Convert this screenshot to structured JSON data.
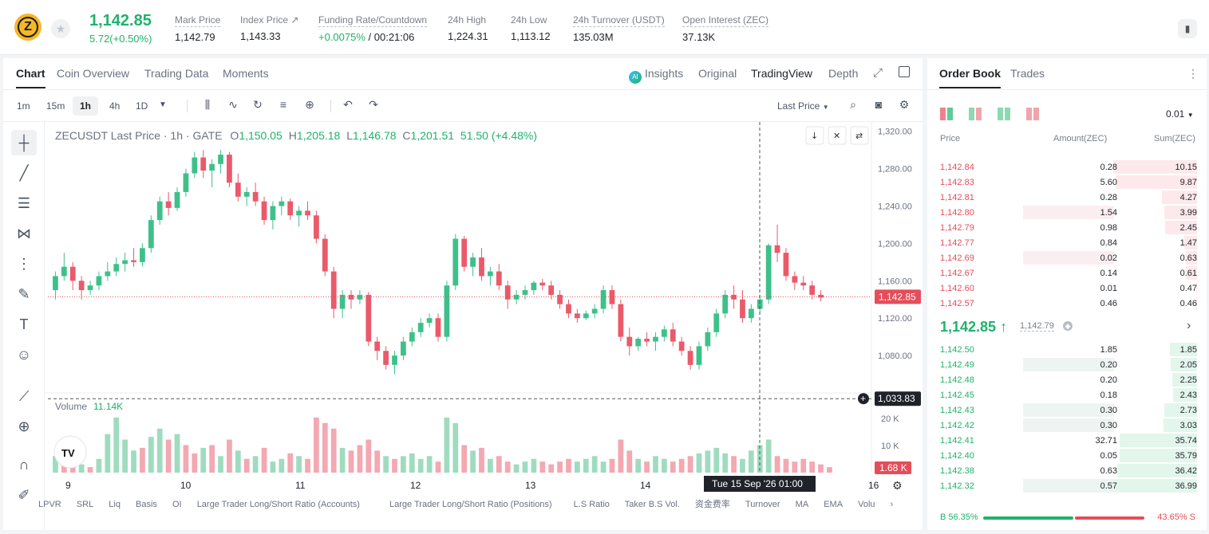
{
  "header": {
    "coin_icon": "zcash-logo",
    "price": "1,142.85",
    "change": "5.72(+0.50%)",
    "stats": [
      {
        "label": "Mark Price",
        "value": "1,142.79"
      },
      {
        "label": "Index Price ↗",
        "value": "1,143.33"
      },
      {
        "label": "Funding Rate/Countdown",
        "value_green": "+0.0075%",
        "value_rest": " / 00:21:06"
      },
      {
        "label": "24h High",
        "value": "1,224.31"
      },
      {
        "label": "24h Low",
        "value": "1,113.12"
      },
      {
        "label": "24h Turnover (USDT)",
        "value": "135.03M"
      },
      {
        "label": "Open Interest (ZEC)",
        "value": "37.13K"
      }
    ]
  },
  "chart_tabs": [
    "Chart",
    "Coin Overview",
    "Trading Data",
    "Moments"
  ],
  "view_tabs": {
    "insights": "Insights",
    "original": "Original",
    "tradingview": "TradingView",
    "depth": "Depth"
  },
  "timeframes": [
    "1m",
    "15m",
    "1h",
    "4h",
    "1D"
  ],
  "price_type": "Last Price",
  "legend": {
    "title": "ZECUSDT Last Price · 1h · GATE",
    "o": "1,150.05",
    "h": "1,205.18",
    "l": "1,146.78",
    "c": "1,201.51",
    "change": "51.50 (+4.48%)"
  },
  "volume_legend": {
    "label": "Volume",
    "value": "11.14K"
  },
  "bottom_indicators": [
    "LPVR",
    "SRL",
    "Liq",
    "Basis",
    "OI",
    "Large Trader Long/Short Ratio (Accounts)",
    "Large Trader Long/Short Ratio (Positions)",
    "L.S Ratio",
    "Taker B.S Vol.",
    "资金费率",
    "Turnover",
    "MA",
    "EMA",
    "Volu"
  ],
  "colors": {
    "up": "#20b26c",
    "down": "#e54d5a",
    "up_candle": "#3ec08b",
    "down_candle": "#ea5a6a"
  },
  "chart_data": {
    "type": "candlestick",
    "y_ticks": [
      "1,320.00",
      "1,280.00",
      "1,240.00",
      "1,200.00",
      "1,160.00",
      "1,120.00",
      "1,080.00"
    ],
    "ylim": [
      1040,
      1330
    ],
    "x_ticks": [
      "9",
      "10",
      "11",
      "12",
      "13",
      "14",
      "16"
    ],
    "volume_ticks": [
      "20 K",
      "10 K"
    ],
    "last_price_tag": "1,142.85",
    "crosshair_price_tag": "1,033.83",
    "crosshair_time": "Tue 15 Sep '26   01:00",
    "volume_tag": "1.68 K",
    "candles": [
      [
        1150,
        1170,
        1140,
        1165
      ],
      [
        1165,
        1190,
        1160,
        1175
      ],
      [
        1175,
        1180,
        1150,
        1160
      ],
      [
        1160,
        1165,
        1140,
        1150
      ],
      [
        1150,
        1160,
        1145,
        1155
      ],
      [
        1155,
        1170,
        1150,
        1165
      ],
      [
        1165,
        1180,
        1160,
        1170
      ],
      [
        1170,
        1185,
        1165,
        1178
      ],
      [
        1178,
        1190,
        1170,
        1182
      ],
      [
        1182,
        1195,
        1175,
        1180
      ],
      [
        1180,
        1200,
        1175,
        1195
      ],
      [
        1195,
        1230,
        1190,
        1225
      ],
      [
        1225,
        1250,
        1220,
        1245
      ],
      [
        1245,
        1255,
        1230,
        1238
      ],
      [
        1238,
        1260,
        1235,
        1255
      ],
      [
        1255,
        1280,
        1250,
        1275
      ],
      [
        1275,
        1298,
        1270,
        1292
      ],
      [
        1292,
        1300,
        1270,
        1278
      ],
      [
        1278,
        1290,
        1260,
        1285
      ],
      [
        1285,
        1300,
        1275,
        1295
      ],
      [
        1295,
        1298,
        1260,
        1265
      ],
      [
        1265,
        1275,
        1245,
        1250
      ],
      [
        1250,
        1260,
        1240,
        1255
      ],
      [
        1255,
        1265,
        1240,
        1245
      ],
      [
        1245,
        1250,
        1220,
        1225
      ],
      [
        1225,
        1245,
        1215,
        1240
      ],
      [
        1240,
        1250,
        1230,
        1245
      ],
      [
        1245,
        1248,
        1225,
        1230
      ],
      [
        1230,
        1240,
        1218,
        1235
      ],
      [
        1235,
        1245,
        1225,
        1230
      ],
      [
        1230,
        1235,
        1200,
        1205
      ],
      [
        1205,
        1210,
        1165,
        1170
      ],
      [
        1170,
        1175,
        1120,
        1130
      ],
      [
        1130,
        1150,
        1120,
        1145
      ],
      [
        1145,
        1150,
        1130,
        1140
      ],
      [
        1140,
        1150,
        1135,
        1145
      ],
      [
        1145,
        1148,
        1090,
        1095
      ],
      [
        1095,
        1100,
        1075,
        1085
      ],
      [
        1085,
        1090,
        1065,
        1070
      ],
      [
        1070,
        1085,
        1060,
        1080
      ],
      [
        1080,
        1100,
        1075,
        1095
      ],
      [
        1095,
        1110,
        1090,
        1105
      ],
      [
        1105,
        1120,
        1100,
        1115
      ],
      [
        1115,
        1125,
        1110,
        1120
      ],
      [
        1120,
        1125,
        1095,
        1100
      ],
      [
        1100,
        1160,
        1095,
        1155
      ],
      [
        1155,
        1210,
        1150,
        1205
      ],
      [
        1205,
        1208,
        1170,
        1175
      ],
      [
        1175,
        1190,
        1165,
        1185
      ],
      [
        1185,
        1195,
        1160,
        1165
      ],
      [
        1165,
        1175,
        1155,
        1170
      ],
      [
        1170,
        1178,
        1150,
        1155
      ],
      [
        1155,
        1160,
        1130,
        1140
      ],
      [
        1140,
        1150,
        1135,
        1145
      ],
      [
        1145,
        1155,
        1140,
        1150
      ],
      [
        1150,
        1160,
        1145,
        1158
      ],
      [
        1158,
        1162,
        1150,
        1155
      ],
      [
        1155,
        1160,
        1140,
        1145
      ],
      [
        1145,
        1150,
        1130,
        1135
      ],
      [
        1135,
        1140,
        1120,
        1125
      ],
      [
        1125,
        1130,
        1115,
        1120
      ],
      [
        1120,
        1128,
        1118,
        1125
      ],
      [
        1125,
        1135,
        1120,
        1130
      ],
      [
        1130,
        1155,
        1125,
        1150
      ],
      [
        1150,
        1155,
        1130,
        1135
      ],
      [
        1135,
        1140,
        1095,
        1100
      ],
      [
        1100,
        1110,
        1080,
        1090
      ],
      [
        1090,
        1100,
        1085,
        1098
      ],
      [
        1098,
        1105,
        1090,
        1095
      ],
      [
        1095,
        1105,
        1085,
        1100
      ],
      [
        1100,
        1112,
        1095,
        1108
      ],
      [
        1108,
        1115,
        1090,
        1095
      ],
      [
        1095,
        1100,
        1080,
        1085
      ],
      [
        1085,
        1090,
        1065,
        1070
      ],
      [
        1070,
        1095,
        1065,
        1090
      ],
      [
        1090,
        1110,
        1085,
        1105
      ],
      [
        1105,
        1130,
        1100,
        1125
      ],
      [
        1125,
        1150,
        1120,
        1145
      ],
      [
        1145,
        1155,
        1130,
        1140
      ],
      [
        1140,
        1150,
        1115,
        1120
      ],
      [
        1120,
        1135,
        1115,
        1130
      ],
      [
        1130,
        1145,
        1125,
        1140
      ],
      [
        1140,
        1200,
        1135,
        1198
      ],
      [
        1198,
        1220,
        1180,
        1190
      ],
      [
        1190,
        1195,
        1160,
        1165
      ],
      [
        1165,
        1170,
        1150,
        1158
      ],
      [
        1158,
        1165,
        1150,
        1155
      ],
      [
        1155,
        1160,
        1140,
        1145
      ],
      [
        1145,
        1150,
        1138,
        1142
      ]
    ],
    "volume": [
      [
        6,
        1
      ],
      [
        5,
        0
      ],
      [
        4,
        0
      ],
      [
        3,
        1
      ],
      [
        2,
        0
      ],
      [
        5,
        1
      ],
      [
        14,
        1
      ],
      [
        20,
        1
      ],
      [
        12,
        1
      ],
      [
        8,
        1
      ],
      [
        9,
        0
      ],
      [
        13,
        1
      ],
      [
        16,
        1
      ],
      [
        12,
        0
      ],
      [
        14,
        1
      ],
      [
        10,
        0
      ],
      [
        7,
        0
      ],
      [
        9,
        1
      ],
      [
        10,
        0
      ],
      [
        6,
        1
      ],
      [
        12,
        0
      ],
      [
        8,
        1
      ],
      [
        5,
        0
      ],
      [
        6,
        1
      ],
      [
        9,
        0
      ],
      [
        4,
        1
      ],
      [
        5,
        1
      ],
      [
        7,
        0
      ],
      [
        6,
        1
      ],
      [
        5,
        0
      ],
      [
        20,
        0
      ],
      [
        18,
        0
      ],
      [
        16,
        0
      ],
      [
        9,
        1
      ],
      [
        8,
        0
      ],
      [
        10,
        0
      ],
      [
        12,
        0
      ],
      [
        8,
        0
      ],
      [
        6,
        1
      ],
      [
        5,
        0
      ],
      [
        6,
        1
      ],
      [
        7,
        1
      ],
      [
        5,
        1
      ],
      [
        6,
        1
      ],
      [
        4,
        0
      ],
      [
        20,
        1
      ],
      [
        18,
        1
      ],
      [
        10,
        0
      ],
      [
        8,
        1
      ],
      [
        9,
        0
      ],
      [
        5,
        1
      ],
      [
        6,
        0
      ],
      [
        4,
        0
      ],
      [
        3,
        1
      ],
      [
        4,
        1
      ],
      [
        5,
        1
      ],
      [
        4,
        0
      ],
      [
        3,
        0
      ],
      [
        4,
        0
      ],
      [
        5,
        0
      ],
      [
        4,
        1
      ],
      [
        5,
        1
      ],
      [
        6,
        1
      ],
      [
        4,
        1
      ],
      [
        5,
        0
      ],
      [
        12,
        0
      ],
      [
        8,
        0
      ],
      [
        5,
        1
      ],
      [
        4,
        0
      ],
      [
        6,
        1
      ],
      [
        5,
        1
      ],
      [
        4,
        0
      ],
      [
        5,
        0
      ],
      [
        6,
        0
      ],
      [
        7,
        1
      ],
      [
        8,
        1
      ],
      [
        9,
        1
      ],
      [
        7,
        1
      ],
      [
        6,
        0
      ],
      [
        5,
        1
      ],
      [
        8,
        1
      ],
      [
        10,
        1
      ],
      [
        12,
        1
      ],
      [
        6,
        0
      ],
      [
        5,
        0
      ],
      [
        4,
        0
      ],
      [
        5,
        0
      ],
      [
        4,
        0
      ],
      [
        3,
        0
      ],
      [
        2,
        0
      ]
    ]
  },
  "order_book": {
    "tabs": [
      "Order Book",
      "Trades"
    ],
    "precision": "0.01",
    "headers": {
      "price": "Price",
      "amount": "Amount(ZEC)",
      "sum": "Sum(ZEC)"
    },
    "asks": [
      {
        "price": "1,142.84",
        "amount": "0.28",
        "sum": "10.15",
        "depth": 1.0,
        "amt_frac": 0.0
      },
      {
        "price": "1,142.83",
        "amount": "5.60",
        "sum": "9.87",
        "depth": 0.97,
        "amt_frac": 0.0
      },
      {
        "price": "1,142.81",
        "amount": "0.28",
        "sum": "4.27",
        "depth": 0.42,
        "amt_frac": 0.0
      },
      {
        "price": "1,142.80",
        "amount": "1.54",
        "sum": "3.99",
        "depth": 0.39,
        "amt_frac": 0.3
      },
      {
        "price": "1,142.79",
        "amount": "0.98",
        "sum": "2.45",
        "depth": 0.38,
        "amt_frac": 0.0
      },
      {
        "price": "1,142.77",
        "amount": "0.84",
        "sum": "1.47",
        "depth": 0.15,
        "amt_frac": 0.0
      },
      {
        "price": "1,142.69",
        "amount": "0.02",
        "sum": "0.63",
        "depth": 0.13,
        "amt_frac": 0.3
      },
      {
        "price": "1,142.67",
        "amount": "0.14",
        "sum": "0.61",
        "depth": 0.13,
        "amt_frac": 0.0
      },
      {
        "price": "1,142.60",
        "amount": "0.01",
        "sum": "0.47",
        "depth": 0.01,
        "amt_frac": 0.0
      },
      {
        "price": "1,142.57",
        "amount": "0.46",
        "sum": "0.46",
        "depth": 0.01,
        "amt_frac": 0.0
      }
    ],
    "mid_price": "1,142.85 ↑",
    "mark_price": "1,142.79",
    "bids": [
      {
        "price": "1,142.50",
        "amount": "1.85",
        "sum": "1.85",
        "depth": 0.32,
        "amt_frac": 0.0
      },
      {
        "price": "1,142.49",
        "amount": "0.20",
        "sum": "2.05",
        "depth": 0.31,
        "amt_frac": 0.3
      },
      {
        "price": "1,142.48",
        "amount": "0.20",
        "sum": "2.25",
        "depth": 0.3,
        "amt_frac": 0.0
      },
      {
        "price": "1,142.45",
        "amount": "0.18",
        "sum": "2.43",
        "depth": 0.29,
        "amt_frac": 0.0
      },
      {
        "price": "1,142.43",
        "amount": "0.30",
        "sum": "2.73",
        "depth": 0.39,
        "amt_frac": 0.3
      },
      {
        "price": "1,142.42",
        "amount": "0.30",
        "sum": "3.03",
        "depth": 0.4,
        "amt_frac": 0.3
      },
      {
        "price": "1,142.41",
        "amount": "32.71",
        "sum": "35.74",
        "depth": 0.92,
        "amt_frac": 0.0
      },
      {
        "price": "1,142.40",
        "amount": "0.05",
        "sum": "35.79",
        "depth": 0.92,
        "amt_frac": 0.0
      },
      {
        "price": "1,142.38",
        "amount": "0.63",
        "sum": "36.42",
        "depth": 0.95,
        "amt_frac": 0.0
      },
      {
        "price": "1,142.32",
        "amount": "0.57",
        "sum": "36.99",
        "depth": 1.0,
        "amt_frac": 0.3
      }
    ],
    "buy_ratio": "B 56.35%",
    "sell_ratio": "43.65% S",
    "buy_fraction": 0.5635
  }
}
